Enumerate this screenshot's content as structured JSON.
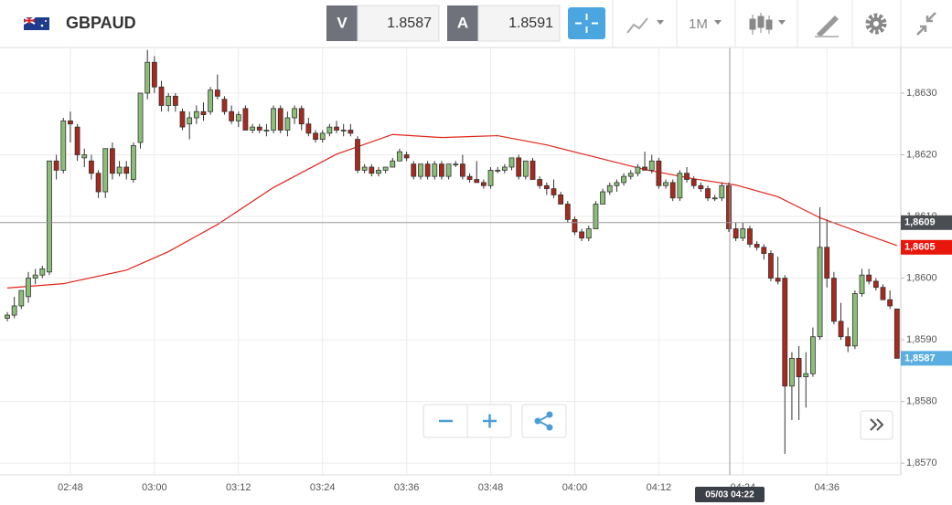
{
  "toolbar": {
    "symbol": "GBPAUD",
    "bid_label": "V",
    "bid": 1.8587,
    "ask_label": "A",
    "ask": 1.8591,
    "timeframe": "1M"
  },
  "chart_data": {
    "type": "candlestick",
    "categories": [
      null,
      null,
      null,
      null,
      null,
      null,
      null,
      null,
      null,
      "02:48",
      null,
      null,
      null,
      null,
      null,
      null,
      null,
      null,
      null,
      null,
      null,
      "03:00",
      null,
      null,
      null,
      null,
      null,
      null,
      null,
      null,
      null,
      null,
      null,
      "03:12",
      null,
      null,
      null,
      null,
      null,
      null,
      null,
      null,
      null,
      null,
      null,
      "03:24",
      null,
      null,
      null,
      null,
      null,
      null,
      null,
      null,
      null,
      null,
      null,
      "03:36",
      null,
      null,
      null,
      null,
      null,
      null,
      null,
      null,
      null,
      null,
      null,
      "03:48",
      null,
      null,
      null,
      null,
      null,
      null,
      null,
      null,
      null,
      null,
      null,
      "04:00",
      null,
      null,
      null,
      null,
      null,
      null,
      null,
      null,
      null,
      null,
      null,
      "04:12",
      null,
      null,
      null,
      null,
      null,
      null,
      null,
      null,
      null,
      null,
      null,
      "04:24",
      null,
      null,
      null,
      null,
      null,
      null,
      null,
      null,
      null,
      null,
      null,
      "04:36",
      null,
      null,
      null,
      null,
      null,
      null,
      null,
      null,
      null,
      null
    ],
    "candles": [
      [
        1.85935,
        1.85945,
        1.8593,
        1.8594
      ],
      [
        1.8594,
        1.8597,
        1.85935,
        1.85955
      ],
      [
        1.85955,
        1.8598,
        1.8595,
        1.8598
      ],
      [
        1.8597,
        1.8601,
        1.8596,
        1.86
      ],
      [
        1.86,
        1.86015,
        1.8599,
        1.86005
      ],
      [
        1.86005,
        1.8602,
        1.86,
        1.86015
      ],
      [
        1.8601,
        1.8619,
        1.86005,
        1.8619
      ],
      [
        1.8619,
        1.862,
        1.8616,
        1.86175
      ],
      [
        1.86175,
        1.8626,
        1.8617,
        1.86255
      ],
      [
        1.86255,
        1.8627,
        1.8622,
        1.8625
      ],
      [
        1.86245,
        1.8625,
        1.8619,
        1.862
      ],
      [
        1.86195,
        1.8621,
        1.8618,
        1.862
      ],
      [
        1.8619,
        1.862,
        1.8616,
        1.8617
      ],
      [
        1.8617,
        1.86175,
        1.8613,
        1.8614
      ],
      [
        1.8614,
        1.8621,
        1.8613,
        1.8621
      ],
      [
        1.8621,
        1.8622,
        1.8616,
        1.8617
      ],
      [
        1.8617,
        1.8619,
        1.86165,
        1.8618
      ],
      [
        1.8618,
        1.8619,
        1.8616,
        1.8617
      ],
      [
        1.8616,
        1.8622,
        1.86155,
        1.86215
      ],
      [
        1.8622,
        1.863,
        1.8621,
        1.863
      ],
      [
        1.863,
        1.8637,
        1.8629,
        1.8635
      ],
      [
        1.8635,
        1.8636,
        1.863,
        1.8631
      ],
      [
        1.8631,
        1.8632,
        1.8627,
        1.8628
      ],
      [
        1.8628,
        1.863,
        1.8627,
        1.86295
      ],
      [
        1.86295,
        1.863,
        1.8627,
        1.8628
      ],
      [
        1.8627,
        1.86275,
        1.8624,
        1.86245
      ],
      [
        1.8625,
        1.8627,
        1.86225,
        1.8626
      ],
      [
        1.8626,
        1.8628,
        1.8625,
        1.8627
      ],
      [
        1.8627,
        1.86285,
        1.86255,
        1.86265
      ],
      [
        1.8627,
        1.8631,
        1.86265,
        1.86305
      ],
      [
        1.86305,
        1.8633,
        1.8629,
        1.86295
      ],
      [
        1.8629,
        1.86295,
        1.86265,
        1.8627
      ],
      [
        1.8627,
        1.8628,
        1.8625,
        1.86255
      ],
      [
        1.86255,
        1.8627,
        1.86245,
        1.86265
      ],
      [
        1.86275,
        1.8628,
        1.8624,
        1.8624
      ],
      [
        1.8624,
        1.8625,
        1.86235,
        1.86245
      ],
      [
        1.86245,
        1.8625,
        1.86235,
        1.8624
      ],
      [
        1.8624,
        1.8625,
        1.8623,
        1.8624
      ],
      [
        1.8624,
        1.8628,
        1.86235,
        1.86275
      ],
      [
        1.86275,
        1.8628,
        1.86235,
        1.8624
      ],
      [
        1.8624,
        1.8627,
        1.8623,
        1.8626
      ],
      [
        1.8626,
        1.8628,
        1.8625,
        1.86275
      ],
      [
        1.86275,
        1.8628,
        1.8624,
        1.8625
      ],
      [
        1.8625,
        1.8626,
        1.8623,
        1.86235
      ],
      [
        1.86235,
        1.8624,
        1.8622,
        1.86225
      ],
      [
        1.86225,
        1.8624,
        1.8622,
        1.86235
      ],
      [
        1.86235,
        1.8625,
        1.8623,
        1.86245
      ],
      [
        1.86245,
        1.86255,
        1.86235,
        1.8624
      ],
      [
        1.8624,
        1.8625,
        1.8623,
        1.8624
      ],
      [
        1.8624,
        1.8625,
        1.8623,
        1.86235
      ],
      [
        1.86225,
        1.8623,
        1.8617,
        1.86175
      ],
      [
        1.86175,
        1.86185,
        1.8617,
        1.8618
      ],
      [
        1.8618,
        1.86185,
        1.86165,
        1.8617
      ],
      [
        1.8617,
        1.8618,
        1.86165,
        1.86175
      ],
      [
        1.86175,
        1.8618,
        1.8617,
        1.8618
      ],
      [
        1.8618,
        1.86195,
        1.8618,
        1.8619
      ],
      [
        1.8619,
        1.8621,
        1.8619,
        1.86205
      ],
      [
        1.862,
        1.86205,
        1.8619,
        1.86195
      ],
      [
        1.86185,
        1.8619,
        1.8616,
        1.86165
      ],
      [
        1.86165,
        1.86185,
        1.8616,
        1.86185
      ],
      [
        1.86185,
        1.8619,
        1.8616,
        1.86165
      ],
      [
        1.86165,
        1.8619,
        1.8616,
        1.86185
      ],
      [
        1.86185,
        1.8619,
        1.8616,
        1.86165
      ],
      [
        1.86165,
        1.86185,
        1.8616,
        1.86185
      ],
      [
        1.86185,
        1.8619,
        1.8618,
        1.86185
      ],
      [
        1.86185,
        1.862,
        1.8616,
        1.86165
      ],
      [
        1.86165,
        1.8617,
        1.86155,
        1.8616
      ],
      [
        1.8616,
        1.8619,
        1.86155,
        1.86155
      ],
      [
        1.86155,
        1.8616,
        1.86145,
        1.8615
      ],
      [
        1.8615,
        1.8618,
        1.86145,
        1.86175
      ],
      [
        1.86175,
        1.8618,
        1.8617,
        1.86175
      ],
      [
        1.86175,
        1.86185,
        1.8617,
        1.8618
      ],
      [
        1.8618,
        1.86195,
        1.86175,
        1.86195
      ],
      [
        1.86195,
        1.862,
        1.8616,
        1.86165
      ],
      [
        1.86165,
        1.8619,
        1.8616,
        1.8619
      ],
      [
        1.8619,
        1.86195,
        1.8616,
        1.8616
      ],
      [
        1.8616,
        1.86165,
        1.86145,
        1.8615
      ],
      [
        1.8615,
        1.86155,
        1.86135,
        1.86145
      ],
      [
        1.86145,
        1.8616,
        1.8613,
        1.86135
      ],
      [
        1.86135,
        1.8614,
        1.8612,
        1.8612
      ],
      [
        1.8612,
        1.86125,
        1.8609,
        1.86095
      ],
      [
        1.86095,
        1.861,
        1.8607,
        1.86075
      ],
      [
        1.86075,
        1.8608,
        1.8606,
        1.86065
      ],
      [
        1.86065,
        1.86085,
        1.8606,
        1.8608
      ],
      [
        1.8608,
        1.86125,
        1.8608,
        1.8612
      ],
      [
        1.8612,
        1.86145,
        1.8612,
        1.8614
      ],
      [
        1.8614,
        1.86155,
        1.86135,
        1.8615
      ],
      [
        1.8615,
        1.8616,
        1.8614,
        1.86155
      ],
      [
        1.86155,
        1.8617,
        1.8615,
        1.86165
      ],
      [
        1.86165,
        1.86175,
        1.8616,
        1.8617
      ],
      [
        1.8617,
        1.86185,
        1.86165,
        1.8618
      ],
      [
        1.8618,
        1.86205,
        1.86175,
        1.86175
      ],
      [
        1.86175,
        1.862,
        1.8617,
        1.8619
      ],
      [
        1.8619,
        1.86195,
        1.86145,
        1.8615
      ],
      [
        1.8615,
        1.8616,
        1.86145,
        1.86155
      ],
      [
        1.86155,
        1.8616,
        1.86125,
        1.8613
      ],
      [
        1.8613,
        1.86175,
        1.86125,
        1.8617
      ],
      [
        1.8617,
        1.8618,
        1.86155,
        1.8616
      ],
      [
        1.8616,
        1.86165,
        1.86145,
        1.8615
      ],
      [
        1.8615,
        1.86155,
        1.8614,
        1.86145
      ],
      [
        1.86145,
        1.8615,
        1.86125,
        1.8613
      ],
      [
        1.8613,
        1.86135,
        1.86125,
        1.8613
      ],
      [
        1.8613,
        1.86155,
        1.86125,
        1.8615
      ],
      [
        1.8615,
        1.86155,
        1.86075,
        1.8608
      ],
      [
        1.8608,
        1.8609,
        1.8606,
        1.86065
      ],
      [
        1.86065,
        1.8609,
        1.8606,
        1.8608
      ],
      [
        1.8608,
        1.86085,
        1.8605,
        1.86055
      ],
      [
        1.86055,
        1.8606,
        1.86045,
        1.8605
      ],
      [
        1.8605,
        1.86055,
        1.8603,
        1.8604
      ],
      [
        1.8604,
        1.86045,
        1.85995,
        1.86
      ],
      [
        1.86,
        1.86035,
        1.8599,
        1.85995
      ],
      [
        1.86,
        1.86005,
        1.85715,
        1.85825
      ],
      [
        1.85825,
        1.8588,
        1.8577,
        1.8587
      ],
      [
        1.8587,
        1.8589,
        1.8577,
        1.8584
      ],
      [
        1.8584,
        1.8588,
        1.8579,
        1.85845
      ],
      [
        1.85845,
        1.8592,
        1.8584,
        1.85905
      ],
      [
        1.85905,
        1.86115,
        1.859,
        1.8605
      ],
      [
        1.8605,
        1.86095,
        1.85985,
        1.86
      ],
      [
        1.86,
        1.8601,
        1.85925,
        1.8593
      ],
      [
        1.8593,
        1.8596,
        1.859,
        1.85905
      ],
      [
        1.85905,
        1.8592,
        1.8588,
        1.8589
      ],
      [
        1.8589,
        1.8598,
        1.85885,
        1.85975
      ],
      [
        1.85975,
        1.86015,
        1.8597,
        1.86005
      ],
      [
        1.86005,
        1.86015,
        1.8599,
        1.85995
      ],
      [
        1.85995,
        1.86,
        1.8598,
        1.85985
      ],
      [
        1.85985,
        1.8599,
        1.85965,
        1.85965
      ],
      [
        1.85965,
        1.8598,
        1.8595,
        1.85955
      ],
      [
        1.8595,
        1.8595,
        1.8587,
        1.8587
      ]
    ],
    "up_color": "#8bbf78",
    "down_color": "#a8291d",
    "ma": {
      "color": "#e2231a",
      "x": [
        0,
        8,
        17,
        23,
        30,
        38,
        47,
        55,
        62,
        70,
        77,
        84,
        91,
        98,
        104,
        110,
        116,
        122,
        127
      ],
      "values": [
        1.85984,
        1.85991,
        1.86013,
        1.86043,
        1.86087,
        1.86147,
        1.86201,
        1.86233,
        1.86228,
        1.86231,
        1.86216,
        1.86196,
        1.86176,
        1.86161,
        1.86151,
        1.86132,
        1.86098,
        1.86073,
        1.86053
      ]
    },
    "ylim": [
      1.85681,
      1.86374
    ],
    "yticks": [
      {
        "value": 1.857,
        "label": "1,8570"
      },
      {
        "value": 1.858,
        "label": "1,8580"
      },
      {
        "value": 1.859,
        "label": "1,8590"
      },
      {
        "value": 1.86,
        "label": "1,8600"
      },
      {
        "value": 1.861,
        "label": "1,8610"
      },
      {
        "value": 1.862,
        "label": "1,8620"
      },
      {
        "value": 1.863,
        "label": "1,8630"
      }
    ],
    "grid": true,
    "price_markers": [
      {
        "value": 1.8609,
        "label": "1,8609",
        "color": "#4a4d52"
      },
      {
        "value": 1.8605,
        "label": "1,8605",
        "color": "#e8160c"
      },
      {
        "value": 1.8587,
        "label": "1,8587",
        "color": "#5aaee0"
      }
    ],
    "crosshair": {
      "label": "05/03 04:22"
    }
  }
}
